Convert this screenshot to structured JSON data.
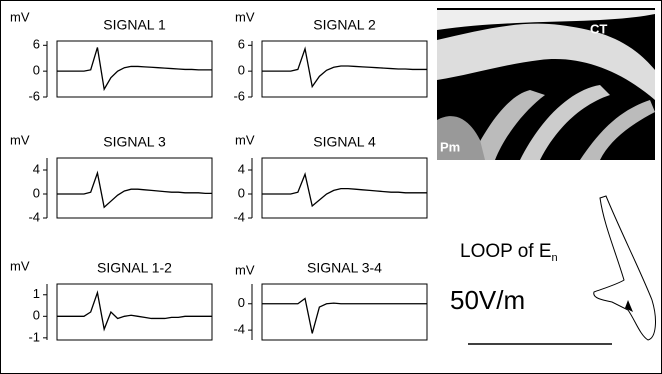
{
  "chart_data": [
    {
      "type": "line",
      "title": "SIGNAL 1",
      "y_label": "mV",
      "color": "#000000",
      "ylim": [
        -6,
        7
      ],
      "yticks": [
        6,
        0,
        -6
      ],
      "values": [
        0,
        0,
        0,
        0,
        0,
        0.3,
        5.5,
        -4.2,
        -1.5,
        0,
        0.8,
        1.1,
        1.1,
        1,
        0.9,
        0.8,
        0.7,
        0.6,
        0.5,
        0.4,
        0.4,
        0.3,
        0.3,
        0.3
      ]
    },
    {
      "type": "line",
      "title": "SIGNAL 2",
      "y_label": "mV",
      "color": "#000000",
      "ylim": [
        -6,
        7
      ],
      "yticks": [
        6,
        0,
        -6
      ],
      "values": [
        0,
        0,
        0,
        0,
        0,
        0.4,
        5.2,
        -3.6,
        -1.2,
        0.2,
        0.9,
        1.2,
        1.2,
        1.1,
        1,
        0.9,
        0.8,
        0.7,
        0.6,
        0.5,
        0.5,
        0.4,
        0.4,
        0.4
      ]
    },
    {
      "type": "line",
      "title": "SIGNAL 3",
      "y_label": "mV",
      "color": "#000000",
      "ylim": [
        -4,
        6
      ],
      "yticks": [
        4,
        0,
        -4
      ],
      "values": [
        0,
        0,
        0,
        0,
        0,
        0.3,
        3.5,
        -2.2,
        -1.2,
        -0.2,
        0.5,
        0.8,
        0.8,
        0.7,
        0.6,
        0.5,
        0.4,
        0.3,
        0.3,
        0.2,
        0.2,
        0.2,
        0.1,
        0.1
      ]
    },
    {
      "type": "line",
      "title": "SIGNAL 4",
      "y_label": "mV",
      "color": "#000000",
      "ylim": [
        -4,
        6
      ],
      "yticks": [
        4,
        0,
        -4
      ],
      "values": [
        0,
        0,
        0,
        0,
        0,
        0.3,
        3.3,
        -2,
        -1,
        0,
        0.6,
        0.9,
        0.9,
        0.8,
        0.7,
        0.6,
        0.5,
        0.4,
        0.3,
        0.3,
        0.2,
        0.2,
        0.2,
        0.2
      ]
    },
    {
      "type": "line",
      "title": "SIGNAL 1-2",
      "y_label": "mV",
      "color": "#000000",
      "ylim": [
        -1.1,
        1.5
      ],
      "yticks": [
        1,
        0,
        -1
      ],
      "values": [
        0,
        0,
        0,
        0,
        0,
        0.2,
        1.1,
        -0.6,
        0.2,
        -0.1,
        0,
        0.05,
        0,
        -0.05,
        -0.1,
        -0.1,
        -0.1,
        -0.05,
        -0.05,
        0,
        0,
        0,
        0,
        0
      ]
    },
    {
      "type": "line",
      "title": "SIGNAL 3-4",
      "y_label": "mV",
      "color": "#000000",
      "ylim": [
        -5.5,
        3
      ],
      "yticks": [
        0,
        -4
      ],
      "values": [
        0,
        0,
        0,
        0,
        0,
        0,
        0.8,
        -4.5,
        -0.5,
        0,
        0.1,
        0,
        0,
        0,
        0,
        0,
        0,
        0,
        0,
        0,
        0,
        0,
        0,
        0
      ]
    }
  ],
  "image": {
    "labels": [
      "CT",
      "Pm"
    ]
  },
  "loop": {
    "title": "LOOP of E",
    "subscript": "n",
    "scale": "50V/m"
  }
}
